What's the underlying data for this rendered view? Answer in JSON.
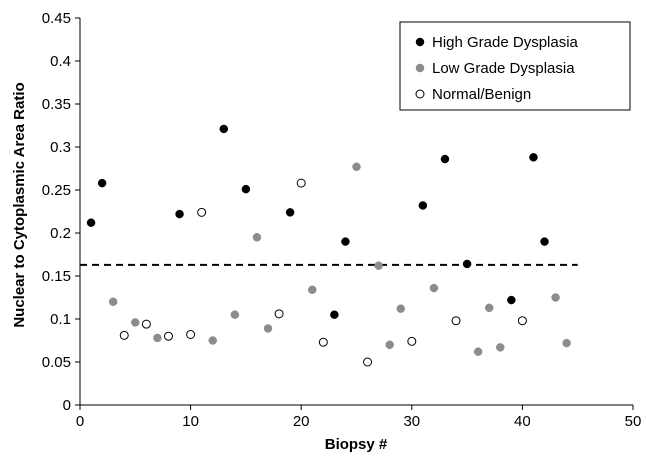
{
  "chart_data": {
    "type": "scatter",
    "title": "",
    "xlabel": "Biopsy #",
    "ylabel": "Nuclear to Cytoplasmic Area Ratio",
    "xlim": [
      0,
      50
    ],
    "ylim": [
      0,
      0.45
    ],
    "x_ticks": [
      0,
      10,
      20,
      30,
      40,
      50
    ],
    "y_ticks": [
      0,
      0.05,
      0.1,
      0.15,
      0.2,
      0.25,
      0.3,
      0.35,
      0.4,
      0.45
    ],
    "x_tick_labels": [
      "0",
      "10",
      "20",
      "30",
      "40",
      "50"
    ],
    "y_tick_labels": [
      "0",
      "0.05",
      "0.1",
      "0.15",
      "0.2",
      "0.25",
      "0.3",
      "0.35",
      "0.4",
      "0.45"
    ],
    "grid": false,
    "legend_position": "top-right",
    "series": [
      {
        "name": "High Grade Dysplasia",
        "marker": "filled-circle",
        "color": "#000000",
        "points": [
          [
            1,
            0.212
          ],
          [
            2,
            0.258
          ],
          [
            9,
            0.222
          ],
          [
            13,
            0.321
          ],
          [
            15,
            0.251
          ],
          [
            19,
            0.224
          ],
          [
            23,
            0.105
          ],
          [
            24,
            0.19
          ],
          [
            31,
            0.232
          ],
          [
            33,
            0.286
          ],
          [
            35,
            0.164
          ],
          [
            39,
            0.122
          ],
          [
            41,
            0.288
          ],
          [
            42,
            0.19
          ]
        ]
      },
      {
        "name": "Low Grade Dysplasia",
        "marker": "filled-circle",
        "color": "#8c8c8c",
        "points": [
          [
            3,
            0.12
          ],
          [
            5,
            0.096
          ],
          [
            7,
            0.078
          ],
          [
            12,
            0.075
          ],
          [
            14,
            0.105
          ],
          [
            16,
            0.195
          ],
          [
            17,
            0.089
          ],
          [
            21,
            0.134
          ],
          [
            25,
            0.277
          ],
          [
            27,
            0.162
          ],
          [
            28,
            0.07
          ],
          [
            29,
            0.112
          ],
          [
            32,
            0.136
          ],
          [
            36,
            0.062
          ],
          [
            37,
            0.113
          ],
          [
            38,
            0.067
          ],
          [
            43,
            0.125
          ],
          [
            44,
            0.072
          ]
        ]
      },
      {
        "name": "Normal/Benign",
        "marker": "hollow-circle",
        "color": "#000000",
        "points": [
          [
            4,
            0.081
          ],
          [
            6,
            0.094
          ],
          [
            8,
            0.08
          ],
          [
            10,
            0.082
          ],
          [
            11,
            0.224
          ],
          [
            18,
            0.106
          ],
          [
            20,
            0.258
          ],
          [
            22,
            0.073
          ],
          [
            26,
            0.05
          ],
          [
            30,
            0.074
          ],
          [
            34,
            0.098
          ],
          [
            40,
            0.098
          ]
        ]
      }
    ],
    "reference_lines": [
      {
        "type": "horizontal",
        "style": "dashed",
        "y": 0.163,
        "x_range": [
          0,
          45
        ]
      }
    ]
  }
}
